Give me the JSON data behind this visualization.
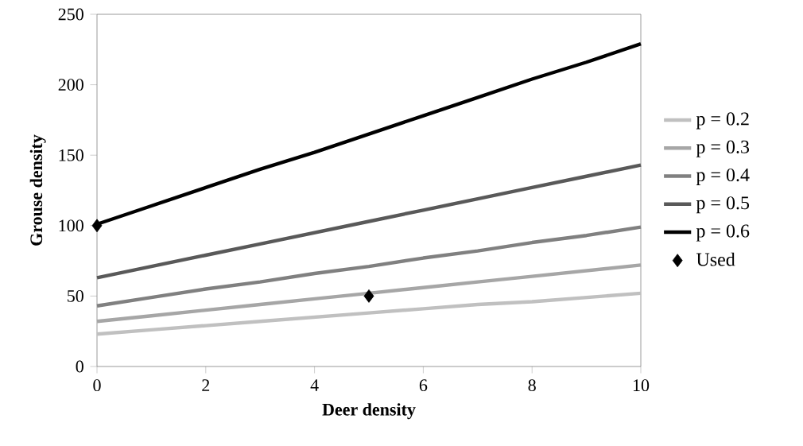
{
  "chart_data": {
    "type": "line",
    "xlabel": "Deer density",
    "ylabel": "Grouse density",
    "xlim": [
      0,
      10
    ],
    "ylim": [
      0,
      250
    ],
    "xticks": [
      0,
      2,
      4,
      6,
      8,
      10
    ],
    "yticks": [
      0,
      50,
      100,
      150,
      200,
      250
    ],
    "grid": false,
    "legend": "right",
    "line_style": "solid",
    "series": [
      {
        "name": "p = 0.2",
        "color": "#c0c0c0",
        "marker": "none",
        "x": [
          0,
          1,
          2,
          3,
          4,
          5,
          6,
          7,
          8,
          9,
          10
        ],
        "values": [
          23,
          26,
          29,
          32,
          35,
          38,
          41,
          44,
          46,
          49,
          52
        ]
      },
      {
        "name": "p = 0.3",
        "color": "#a6a6a6",
        "marker": "none",
        "x": [
          0,
          1,
          2,
          3,
          4,
          5,
          6,
          7,
          8,
          9,
          10
        ],
        "values": [
          32,
          36,
          40,
          44,
          48,
          52,
          56,
          60,
          64,
          68,
          72
        ]
      },
      {
        "name": "p = 0.4",
        "color": "#808080",
        "marker": "none",
        "x": [
          0,
          1,
          2,
          3,
          4,
          5,
          6,
          7,
          8,
          9,
          10
        ],
        "values": [
          43,
          49,
          55,
          60,
          66,
          71,
          77,
          82,
          88,
          93,
          99
        ]
      },
      {
        "name": "p = 0.5",
        "color": "#595959",
        "marker": "none",
        "x": [
          0,
          1,
          2,
          3,
          4,
          5,
          6,
          7,
          8,
          9,
          10
        ],
        "values": [
          63,
          71,
          79,
          87,
          95,
          103,
          111,
          119,
          127,
          135,
          143
        ]
      },
      {
        "name": "p = 0.6",
        "color": "#000000",
        "marker": "none",
        "x": [
          0,
          1,
          2,
          3,
          4,
          5,
          6,
          7,
          8,
          9,
          10
        ],
        "values": [
          101,
          114,
          127,
          140,
          152,
          165,
          178,
          191,
          204,
          216,
          229
        ]
      },
      {
        "name": "Used",
        "type": "scatter",
        "color": "#000000",
        "marker": "diamond",
        "x": [
          0,
          5
        ],
        "values": [
          100,
          50
        ]
      }
    ]
  }
}
